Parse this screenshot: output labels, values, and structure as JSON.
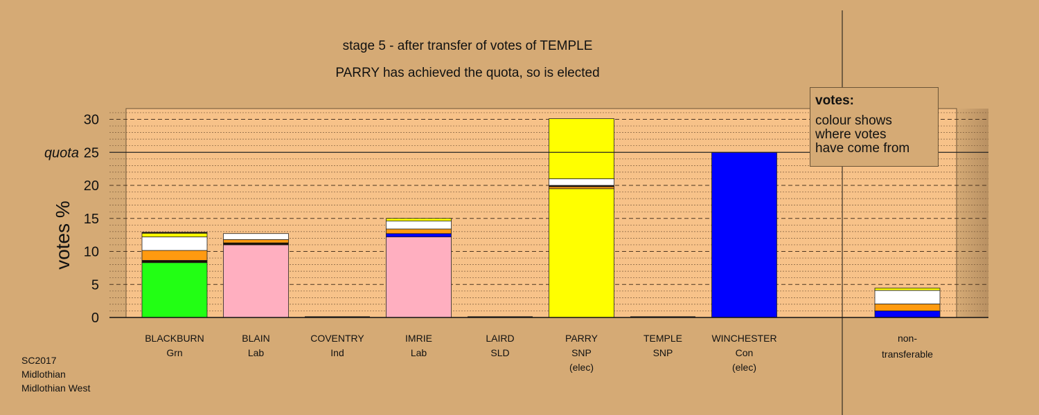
{
  "chart_data": {
    "type": "bar",
    "stacked": true,
    "title": "stage 5 - after transfer of votes of TEMPLE",
    "subtitle": "PARRY has achieved the quota, so is elected",
    "ylabel": "votes %",
    "ylim": [
      0,
      31.5
    ],
    "yticks": [
      0,
      5,
      10,
      15,
      20,
      25,
      30
    ],
    "quota": {
      "label": "quota",
      "value": 25
    },
    "grid": true,
    "categories": [
      {
        "name": "BLACKBURN",
        "party": "Grn",
        "note": "",
        "segments": [
          {
            "value": 8.3,
            "color": "#22ff14"
          },
          {
            "value": 0.35,
            "color": "#1a0f00"
          },
          {
            "value": 1.5,
            "color": "#ff9a10"
          },
          {
            "value": 2.05,
            "color": "#ffffff"
          },
          {
            "value": 0.55,
            "color": "#ffff00"
          },
          {
            "value": 0.15,
            "color": "#1a0f00"
          }
        ]
      },
      {
        "name": "BLAIN",
        "party": "Lab",
        "note": "",
        "segments": [
          {
            "value": 11.0,
            "color": "#ffafc0"
          },
          {
            "value": 0.3,
            "color": "#1a0f00"
          },
          {
            "value": 0.5,
            "color": "#ff9a10"
          },
          {
            "value": 0.9,
            "color": "#ffffff"
          }
        ]
      },
      {
        "name": "COVENTRY",
        "party": "Ind",
        "note": "",
        "segments": []
      },
      {
        "name": "IMRIE",
        "party": "Lab",
        "note": "",
        "segments": [
          {
            "value": 12.2,
            "color": "#ffafc0"
          },
          {
            "value": 0.5,
            "color": "#0000ff"
          },
          {
            "value": 0.7,
            "color": "#ff9a10"
          },
          {
            "value": 1.2,
            "color": "#ffffff"
          },
          {
            "value": 0.4,
            "color": "#ffff00"
          }
        ]
      },
      {
        "name": "LAIRD",
        "party": "SLD",
        "note": "",
        "segments": []
      },
      {
        "name": "PARRY",
        "party": "SNP",
        "note": "(elec)",
        "segments": [
          {
            "value": 19.5,
            "color": "#ffff00"
          },
          {
            "value": 0.3,
            "color": "#ff9a10"
          },
          {
            "value": 0.2,
            "color": "#1a0f00"
          },
          {
            "value": 1.0,
            "color": "#ffffff"
          },
          {
            "value": 9.1,
            "color": "#ffff00"
          }
        ]
      },
      {
        "name": "TEMPLE",
        "party": "SNP",
        "note": "",
        "segments": []
      },
      {
        "name": "WINCHESTER",
        "party": "Con",
        "note": "(elec)",
        "segments": [
          {
            "value": 25.0,
            "color": "#0000ff"
          }
        ]
      }
    ],
    "nontransferable": {
      "label_line1": "non-",
      "label_line2": "transferable",
      "segments": [
        {
          "value": 1.0,
          "color": "#0000ff"
        },
        {
          "value": 1.05,
          "color": "#ff9a10"
        },
        {
          "value": 2.05,
          "color": "#ffffff"
        },
        {
          "value": 0.35,
          "color": "#ffff00"
        }
      ]
    },
    "colors": {
      "background": "#d5aa75",
      "plot_fill": "#f7c289",
      "grid_line": "#7a5a3a",
      "axis_line": "#111111"
    }
  },
  "legend": {
    "title": "votes:",
    "lines": [
      "colour shows",
      "where votes",
      "have come from"
    ]
  },
  "footer": {
    "lines": [
      "SC2017",
      "Midlothian",
      "Midlothian West"
    ]
  }
}
